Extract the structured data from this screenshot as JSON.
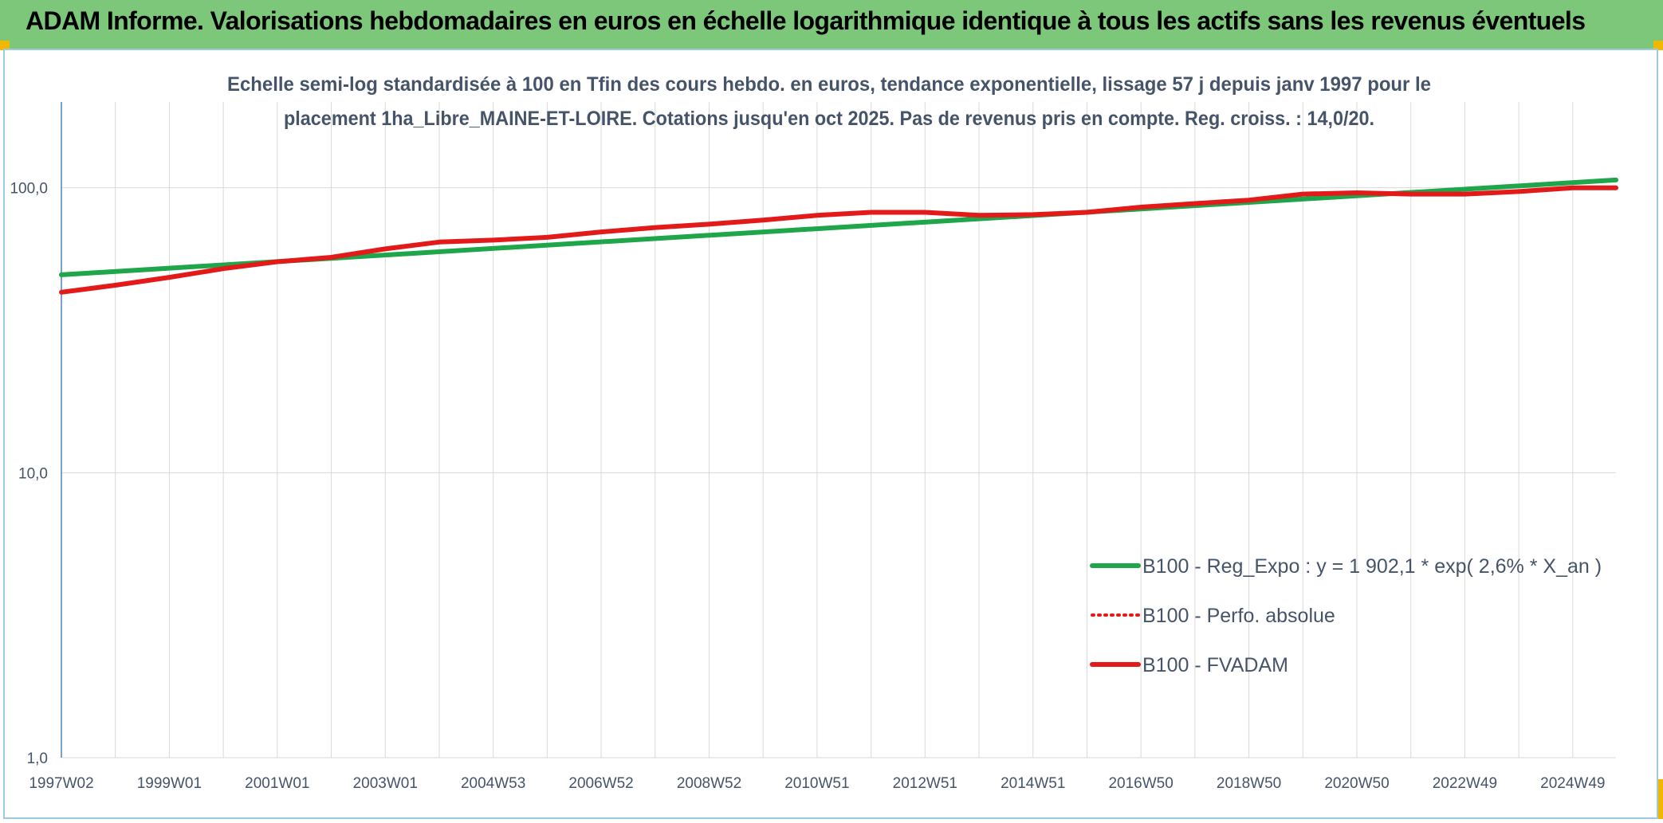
{
  "header": {
    "title": "ADAM Informe. Valorisations hebdomadaires en euros en échelle logarithmique identique à tous les actifs sans les revenus éventuels",
    "background": "#7dc77a",
    "corner_color": "#f2b700"
  },
  "chart_data": {
    "type": "line",
    "title_lines": [
      "Echelle semi-log standardisée à 100 en Tfin des cours hebdo. en euros, tendance exponentielle, lissage 57 j depuis janv 1997 pour le",
      "placement 1ha_Libre_MAINE-ET-LOIRE. Cotations jusqu'en oct 2025. Pas de revenus pris en compte. Reg. croiss. : 14,0/20."
    ],
    "y_scale": "log",
    "ylim": [
      1,
      200
    ],
    "y_ticks": [
      {
        "value": 1,
        "label": "1,0"
      },
      {
        "value": 10,
        "label": "10,0"
      },
      {
        "value": 100,
        "label": "100,0"
      }
    ],
    "xlim": [
      1997.0,
      2025.8
    ],
    "x_ticks": [
      {
        "value": 1997.0,
        "label": "1997W02"
      },
      {
        "value": 1999.0,
        "label": "1999W01"
      },
      {
        "value": 2001.0,
        "label": "2001W01"
      },
      {
        "value": 2003.0,
        "label": "2003W01"
      },
      {
        "value": 2005.0,
        "label": "2004W53"
      },
      {
        "value": 2007.0,
        "label": "2006W52"
      },
      {
        "value": 2009.0,
        "label": "2008W52"
      },
      {
        "value": 2011.0,
        "label": "2010W51"
      },
      {
        "value": 2013.0,
        "label": "2012W51"
      },
      {
        "value": 2015.0,
        "label": "2014W51"
      },
      {
        "value": 2017.0,
        "label": "2016W50"
      },
      {
        "value": 2019.0,
        "label": "2018W50"
      },
      {
        "value": 2021.0,
        "label": "2020W50"
      },
      {
        "value": 2023.0,
        "label": "2022W49"
      },
      {
        "value": 2025.0,
        "label": "2024W49"
      }
    ],
    "grid": true,
    "legend_position": "bottom-right",
    "series": [
      {
        "name": "B100 - Reg_Expo : y = 1 902,1 * exp( 2,6% *  X_an )",
        "color": "#1fa64a",
        "style": "solid",
        "x": [
          1997.0,
          2025.8
        ],
        "y": [
          49.5,
          106.5
        ]
      },
      {
        "name": "B100 - Perfo. absolue",
        "color": "#e31a1a",
        "style": "dotted",
        "x": [
          1997.0,
          1998.0,
          1999.0,
          2000.0,
          2001.0,
          2002.0,
          2003.0,
          2004.0,
          2005.0,
          2006.0,
          2007.0,
          2008.0,
          2009.0,
          2010.0,
          2011.0,
          2012.0,
          2013.0,
          2014.0,
          2015.0,
          2016.0,
          2017.0,
          2018.0,
          2019.0,
          2020.0,
          2021.0,
          2022.0,
          2023.0,
          2024.0,
          2025.0,
          2025.8
        ],
        "y": [
          43.0,
          45.5,
          48.5,
          52.0,
          55.0,
          57.0,
          61.0,
          64.5,
          65.5,
          67.0,
          70.0,
          72.5,
          74.5,
          77.0,
          80.0,
          82.0,
          82.0,
          80.0,
          80.5,
          82.0,
          85.5,
          88.0,
          90.5,
          95.0,
          96.0,
          95.0,
          95.0,
          97.0,
          100.0,
          100.0
        ]
      },
      {
        "name": "B100 - FVADAM",
        "color": "#e31a1a",
        "style": "solid",
        "x": [
          1997.0,
          1998.0,
          1999.0,
          2000.0,
          2001.0,
          2002.0,
          2003.0,
          2004.0,
          2005.0,
          2006.0,
          2007.0,
          2008.0,
          2009.0,
          2010.0,
          2011.0,
          2012.0,
          2013.0,
          2014.0,
          2015.0,
          2016.0,
          2017.0,
          2018.0,
          2019.0,
          2020.0,
          2021.0,
          2022.0,
          2023.0,
          2024.0,
          2025.0,
          2025.8
        ],
        "y": [
          43.0,
          45.5,
          48.5,
          52.0,
          55.0,
          57.0,
          61.0,
          64.5,
          65.5,
          67.0,
          70.0,
          72.5,
          74.5,
          77.0,
          80.0,
          82.0,
          82.0,
          80.0,
          80.5,
          82.0,
          85.5,
          88.0,
          90.5,
          95.0,
          96.0,
          95.0,
          95.0,
          97.0,
          100.0,
          100.0
        ]
      }
    ]
  }
}
